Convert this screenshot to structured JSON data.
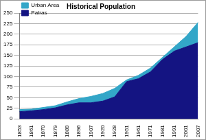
{
  "chart_data": {
    "type": "area",
    "title": "Historical Population",
    "categories": [
      "1853",
      "1861",
      "1870",
      "1879",
      "1889",
      "1896",
      "1907",
      "1920",
      "1928",
      "1951",
      "1961",
      "1971",
      "1981",
      "1991",
      "2001",
      "2007"
    ],
    "series": [
      {
        "name": "Patras",
        "color": "#141482",
        "values": [
          17,
          19,
          22,
          26,
          33,
          38,
          38,
          42,
          52,
          88,
          95,
          111,
          140,
          160,
          170,
          180
        ]
      },
      {
        "name": "Urban Area",
        "color": "#33a6c8",
        "values": [
          5,
          4,
          5,
          5,
          7,
          10,
          15,
          18,
          20,
          4,
          8,
          9,
          5,
          10,
          25,
          48
        ]
      }
    ],
    "stacked": true,
    "ylim": [
      0,
      250
    ],
    "yticks": [
      0,
      25,
      50,
      75,
      100,
      125,
      150,
      175,
      200,
      225,
      250
    ],
    "grid": true,
    "legend": "upper left"
  }
}
